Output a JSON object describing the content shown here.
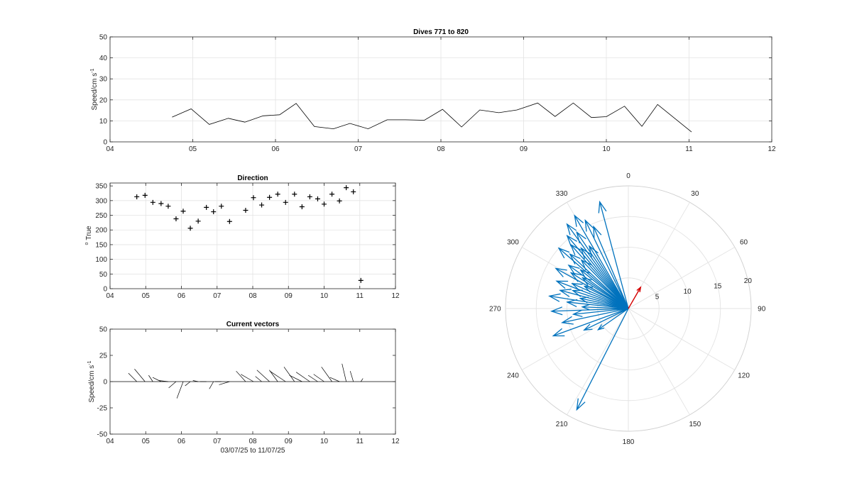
{
  "colors": {
    "grid": "#e3e3e3",
    "axis": "#262626",
    "trace": "#000000",
    "polar": "#0072bd",
    "mean": "#d40000"
  },
  "chart_data": [
    {
      "id": "speed",
      "type": "line",
      "title": "Dives 771 to 820",
      "ylabel": "Speed/cm s",
      "ylabel_sup": "-1",
      "xlim": [
        4,
        12
      ],
      "ylim": [
        0,
        50
      ],
      "xticks": [
        4,
        5,
        6,
        7,
        8,
        9,
        10,
        11,
        12
      ],
      "xticklabels": [
        "04",
        "05",
        "06",
        "07",
        "08",
        "09",
        "10",
        "11",
        "12"
      ],
      "yticks": [
        0,
        10,
        20,
        30,
        40,
        50
      ],
      "grid": true,
      "x": [
        4.75,
        4.98,
        5.2,
        5.43,
        5.63,
        5.85,
        6.05,
        6.25,
        6.47,
        6.7,
        6.9,
        7.12,
        7.35,
        7.57,
        7.8,
        8.02,
        8.25,
        8.47,
        8.7,
        8.92,
        9.17,
        9.38,
        9.6,
        9.82,
        10.0,
        10.22,
        10.43,
        10.62,
        11.03
      ],
      "values": [
        11.8,
        15.7,
        8.3,
        11.2,
        9.4,
        12.4,
        12.9,
        18.3,
        7.3,
        6.2,
        8.8,
        6.2,
        10.5,
        10.5,
        10.3,
        15.5,
        7.1,
        15.2,
        13.9,
        15.2,
        18.5,
        12.1,
        18.5,
        11.6,
        12.0,
        17.0,
        7.4,
        17.8,
        4.7
      ]
    },
    {
      "id": "direction",
      "type": "scatter",
      "title": "Direction",
      "ylabel": "True",
      "ylabel_sup": "o",
      "marker": "+",
      "xlim": [
        4,
        12
      ],
      "ylim": [
        0,
        360
      ],
      "xticks": [
        4,
        5,
        6,
        7,
        8,
        9,
        10,
        11,
        12
      ],
      "xticklabels": [
        "04",
        "05",
        "06",
        "07",
        "08",
        "09",
        "10",
        "11",
        "12"
      ],
      "yticks": [
        0,
        50,
        100,
        150,
        200,
        250,
        300,
        350
      ],
      "grid": true,
      "x": [
        4.75,
        4.98,
        5.2,
        5.43,
        5.63,
        5.85,
        6.05,
        6.25,
        6.47,
        6.7,
        6.9,
        7.12,
        7.35,
        7.8,
        8.02,
        8.25,
        8.47,
        8.7,
        8.92,
        9.17,
        9.38,
        9.6,
        9.82,
        10.0,
        10.22,
        10.43,
        10.62,
        10.82,
        11.03
      ],
      "values": [
        313,
        318,
        294,
        290,
        281,
        238,
        264,
        206,
        230,
        277,
        262,
        281,
        229,
        267,
        310,
        285,
        311,
        322,
        294,
        322,
        279,
        313,
        306,
        288,
        322,
        299,
        344,
        330,
        28
      ]
    },
    {
      "id": "vectors",
      "type": "line",
      "title": "Current vectors",
      "ylabel": "Speed/cm s",
      "ylabel_sup": "-1",
      "xlabel": "03/07/25 to 11/07/25",
      "xlim": [
        4,
        12
      ],
      "ylim": [
        -50,
        50
      ],
      "xticks": [
        4,
        5,
        6,
        7,
        8,
        9,
        10,
        11,
        12
      ],
      "xticklabels": [
        "04",
        "05",
        "06",
        "07",
        "08",
        "09",
        "10",
        "11",
        "12"
      ],
      "yticks": [
        -50,
        -25,
        0,
        25,
        50
      ],
      "grid": false,
      "vectors": [
        {
          "x": 4.75,
          "u": -8.0,
          "v": 8.0
        },
        {
          "x": 4.98,
          "u": -10.0,
          "v": 12.0
        },
        {
          "x": 5.2,
          "u": -4.0,
          "v": 6.0
        },
        {
          "x": 5.43,
          "u": -8.0,
          "v": 4.0
        },
        {
          "x": 5.63,
          "u": -9.0,
          "v": 1.0
        },
        {
          "x": 5.85,
          "u": -7.0,
          "v": -6.0
        },
        {
          "x": 6.05,
          "u": -6.0,
          "v": -16.0
        },
        {
          "x": 6.25,
          "u": -5.0,
          "v": -4.0
        },
        {
          "x": 6.47,
          "u": -5.0,
          "v": 1.0
        },
        {
          "x": 6.7,
          "u": -6.0,
          "v": 0.0
        },
        {
          "x": 6.9,
          "u": -4.0,
          "v": -7.0
        },
        {
          "x": 7.12,
          "u": -6.0,
          "v": 0.0
        },
        {
          "x": 7.35,
          "u": -10.0,
          "v": -3.0
        },
        {
          "x": 7.8,
          "u": -9.0,
          "v": 10.0
        },
        {
          "x": 8.02,
          "u": -12.0,
          "v": 7.0
        },
        {
          "x": 8.25,
          "u": -6.0,
          "v": 5.0
        },
        {
          "x": 8.47,
          "u": -12.0,
          "v": 11.0
        },
        {
          "x": 8.7,
          "u": -8.0,
          "v": 11.0
        },
        {
          "x": 8.92,
          "u": -15.0,
          "v": 10.0
        },
        {
          "x": 9.17,
          "u": -10.0,
          "v": 14.0
        },
        {
          "x": 9.38,
          "u": -12.0,
          "v": 6.0
        },
        {
          "x": 9.6,
          "u": -13.0,
          "v": 9.0
        },
        {
          "x": 9.82,
          "u": -9.0,
          "v": 6.0
        },
        {
          "x": 10.0,
          "u": -10.0,
          "v": 7.0
        },
        {
          "x": 10.22,
          "u": -10.0,
          "v": 14.0
        },
        {
          "x": 10.43,
          "u": -9.0,
          "v": 4.0
        },
        {
          "x": 10.62,
          "u": -4.0,
          "v": 17.0
        },
        {
          "x": 10.82,
          "u": -3.0,
          "v": 10.0
        },
        {
          "x": 11.03,
          "u": 2.0,
          "v": 3.0
        }
      ]
    },
    {
      "id": "polar",
      "type": "polar",
      "theta_ticks": [
        0,
        30,
        60,
        90,
        120,
        150,
        180,
        210,
        240,
        270,
        300,
        330
      ],
      "theta_zero": "top",
      "theta_direction": "clockwise",
      "r_ticks": [
        5,
        10,
        15,
        20
      ],
      "r_max": 20,
      "vectors": [
        {
          "dir": 345,
          "speed": 18.0
        },
        {
          "dir": 337,
          "speed": 14.5
        },
        {
          "dir": 334,
          "speed": 16.0
        },
        {
          "dir": 330,
          "speed": 17.5
        },
        {
          "dir": 328,
          "speed": 12.0
        },
        {
          "dir": 326,
          "speed": 15.0
        },
        {
          "dir": 324,
          "speed": 17.0
        },
        {
          "dir": 322,
          "speed": 12.5
        },
        {
          "dir": 320,
          "speed": 15.5
        },
        {
          "dir": 318,
          "speed": 14.0
        },
        {
          "dir": 316,
          "speed": 11.0
        },
        {
          "dir": 313,
          "speed": 13.0
        },
        {
          "dir": 311,
          "speed": 15.0
        },
        {
          "dir": 309,
          "speed": 10.0
        },
        {
          "dir": 306,
          "speed": 12.0
        },
        {
          "dir": 304,
          "speed": 9.0
        },
        {
          "dir": 302,
          "speed": 11.0
        },
        {
          "dir": 299,
          "speed": 13.5
        },
        {
          "dir": 297,
          "speed": 8.0
        },
        {
          "dir": 294,
          "speed": 10.0
        },
        {
          "dir": 291,
          "speed": 12.5
        },
        {
          "dir": 288,
          "speed": 9.5
        },
        {
          "dir": 285,
          "speed": 11.5
        },
        {
          "dir": 282,
          "speed": 8.0
        },
        {
          "dir": 279,
          "speed": 13.0
        },
        {
          "dir": 276,
          "speed": 10.0
        },
        {
          "dir": 272,
          "speed": 7.5
        },
        {
          "dir": 268,
          "speed": 12.5
        },
        {
          "dir": 264,
          "speed": 9.0
        },
        {
          "dir": 258,
          "speed": 11.0
        },
        {
          "dir": 250,
          "speed": 13.0
        },
        {
          "dir": 244,
          "speed": 8.0
        },
        {
          "dir": 235,
          "speed": 6.0
        },
        {
          "dir": 207,
          "speed": 18.5
        }
      ],
      "mean_vector": {
        "dir": 30,
        "speed": 4.0
      }
    }
  ]
}
